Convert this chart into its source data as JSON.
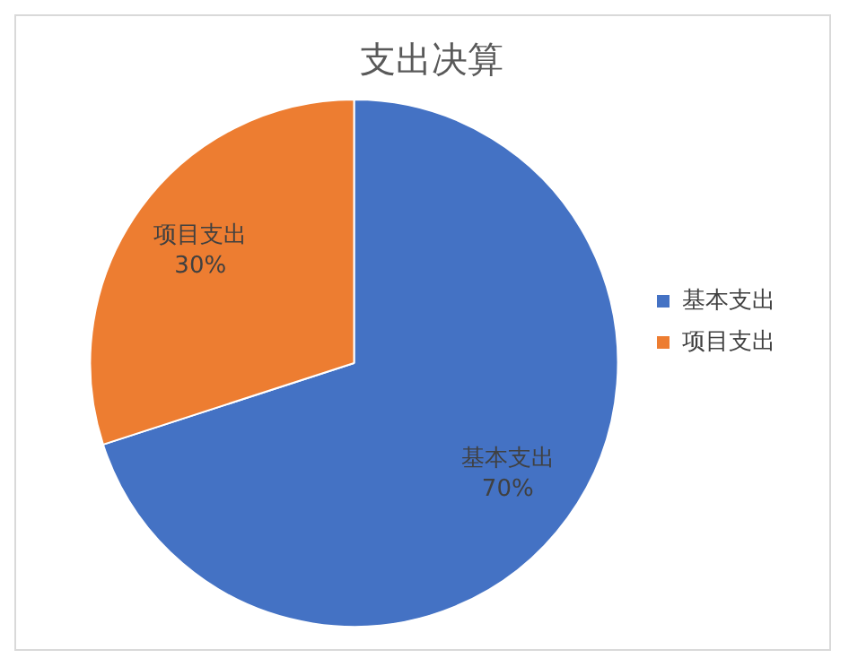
{
  "chart_data": {
    "type": "pie",
    "title": "支出决算",
    "categories": [
      "基本支出",
      "项目支出"
    ],
    "values": [
      70,
      30
    ],
    "colors": [
      "#4472c4",
      "#ed7d31"
    ],
    "value_labels": [
      "70%",
      "30%"
    ],
    "legend": "right"
  }
}
